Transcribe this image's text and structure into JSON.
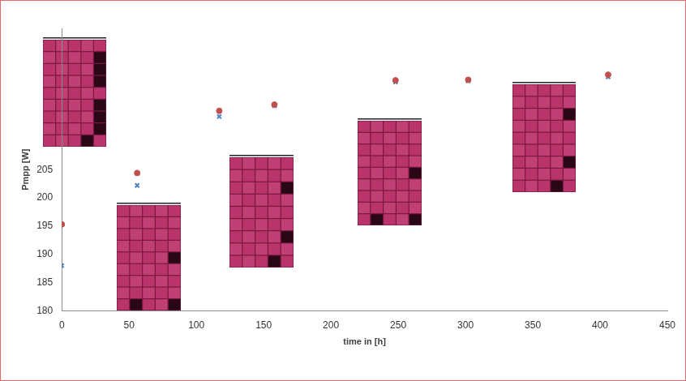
{
  "chart_data": {
    "type": "scatter",
    "x": [
      0,
      56,
      117,
      158,
      248,
      302,
      406
    ],
    "series": [
      {
        "color": "#c0504d",
        "marker": "circle",
        "values": [
          195.3,
          204.4,
          215.4,
          216.5,
          220.8,
          220.9,
          221.8
        ]
      },
      {
        "color": "#4f81bd",
        "marker": "cross",
        "values": [
          188.0,
          202.2,
          214.4,
          216.3,
          220.5,
          220.7,
          221.4
        ]
      }
    ],
    "x_label": "time in [h]",
    "y_label": "Pmpp [W]",
    "xlim": [
      0,
      450
    ],
    "xticks": [
      0,
      50,
      100,
      150,
      200,
      250,
      300,
      350,
      400,
      450
    ],
    "ylim": [
      180,
      230
    ],
    "yticks": [
      180,
      185,
      190,
      195,
      200,
      205
    ],
    "grid": false
  }
}
